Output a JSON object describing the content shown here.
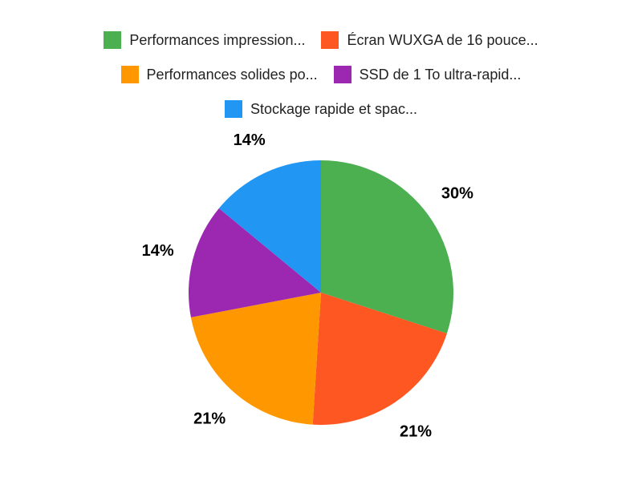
{
  "chart_data": {
    "type": "pie",
    "title": "",
    "legend_position": "top",
    "start_angle_deg": 0,
    "direction": "clockwise",
    "slices": [
      {
        "label": "Performances impression...",
        "value": 30,
        "percent_label": "30%",
        "color": "#4CAF50"
      },
      {
        "label": "Écran WUXGA de 16 pouce...",
        "value": 21,
        "percent_label": "21%",
        "color": "#FF5722"
      },
      {
        "label": "Performances solides po...",
        "value": 21,
        "percent_label": "21%",
        "color": "#FF9800"
      },
      {
        "label": "SSD de 1 To ultra-rapid...",
        "value": 14,
        "percent_label": "14%",
        "color": "#9C27B0"
      },
      {
        "label": "Stockage rapide et spac...",
        "value": 14,
        "percent_label": "14%",
        "color": "#2196F3"
      }
    ],
    "legend_rows": [
      [
        0,
        1
      ],
      [
        2,
        3
      ],
      [
        4
      ]
    ]
  },
  "colors": {
    "background": "#FFFFFF",
    "legend_text": "#222222",
    "percent_label_text": "#000000"
  }
}
